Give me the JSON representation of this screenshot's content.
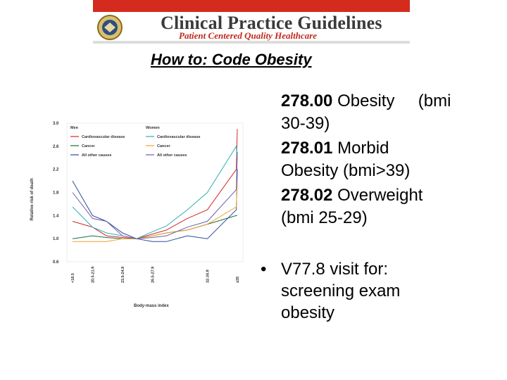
{
  "banner": {
    "title": "Clinical Practice Guidelines",
    "subtitle": "Patient Centered Quality Healthcare",
    "seal_icon": "seal-emblem-icon",
    "colors": {
      "strip": "#d42b1e",
      "subtitle": "#c0281c",
      "seal": "#c9a64a"
    }
  },
  "heading": "How to: Code Obesity",
  "codes": [
    {
      "num": "278.00",
      "line1": " Obesity     (bmi",
      "line2": "30-39)"
    },
    {
      "num": "278.01",
      "line1": " Morbid",
      "line2": "Obesity (bmi>39)"
    },
    {
      "num": "278.02",
      "line1": " Overweight",
      "line2": "(bmi 25-29)"
    }
  ],
  "bullet": {
    "symbol": "•",
    "lines": [
      "V77.8 visit for:",
      "screening exam",
      "obesity"
    ]
  },
  "chart_data": {
    "type": "line",
    "xlabel": "Body-mass index",
    "ylabel": "Relative risk of death",
    "x_ticks": [
      "<18.5",
      "20.5-21.9",
      "23.5-24.9",
      "26.5-27.9",
      "32-34.9",
      "≥35"
    ],
    "x_positions": [
      18.5,
      20.5,
      21.9,
      23.5,
      24.9,
      26.5,
      27.9,
      30,
      32,
      34.9,
      35
    ],
    "y_ticks": [
      "0.6",
      "1.0",
      "1.4",
      "1.8",
      "2.2",
      "2.6",
      "3.0"
    ],
    "ylim": [
      0.6,
      3.0
    ],
    "legend": {
      "men_title": "Men",
      "women_title": "Women",
      "men_items": [
        "Cardiovascular disease",
        "Cancer",
        "All other causes"
      ],
      "women_items": [
        "Cardiovascular disease",
        "Cancer",
        "All other causes"
      ]
    },
    "series": [
      {
        "name": "Cardiovascular disease",
        "group": "Men",
        "color": "#d62728",
        "values": [
          1.3,
          1.2,
          1.05,
          1.02,
          1.0,
          1.08,
          1.15,
          1.35,
          1.5,
          2.2,
          2.9
        ]
      },
      {
        "name": "Cancer",
        "group": "Men",
        "color": "#1f6b3a",
        "values": [
          1.0,
          1.05,
          1.02,
          1.0,
          1.0,
          1.05,
          1.1,
          1.15,
          1.25,
          1.4,
          1.4
        ]
      },
      {
        "name": "All other causes",
        "group": "Men",
        "color": "#2e4a9a",
        "values": [
          2.0,
          1.4,
          1.3,
          1.1,
          1.0,
          0.95,
          0.95,
          1.05,
          1.0,
          1.5,
          2.2
        ]
      },
      {
        "name": "Cardiovascular disease",
        "group": "Women",
        "color": "#2fb0b0",
        "values": [
          1.55,
          1.2,
          1.1,
          1.05,
          1.0,
          1.12,
          1.22,
          1.5,
          1.8,
          2.6,
          2.35
        ]
      },
      {
        "name": "Cancer",
        "group": "Women",
        "color": "#f0a030",
        "values": [
          0.95,
          0.95,
          0.95,
          1.0,
          1.0,
          1.05,
          1.1,
          1.15,
          1.25,
          1.55,
          2.0
        ]
      },
      {
        "name": "All other causes",
        "group": "Women",
        "color": "#6a5fb0",
        "values": [
          1.8,
          1.35,
          1.3,
          1.05,
          1.0,
          1.02,
          1.05,
          1.2,
          1.3,
          1.85,
          2.5
        ]
      }
    ]
  }
}
